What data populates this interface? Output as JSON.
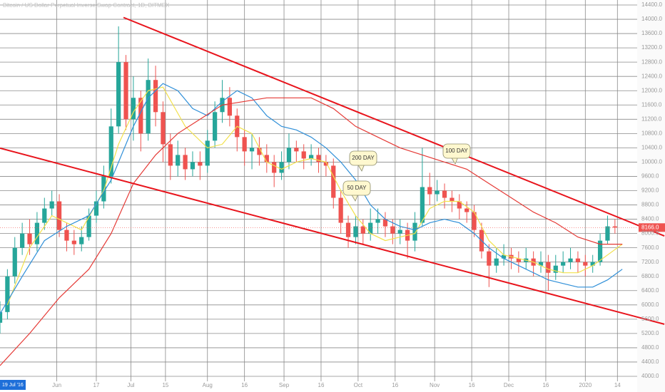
{
  "chart_data": {
    "type": "candlestick",
    "title": "Bitcoin / US Dollar Perpetual Inverse Swap Contract, 1D, BITMEX",
    "cursor_label": "19 Jul '16",
    "up_color": "#26a69a",
    "down_color": "#ef5350",
    "x": [
      0,
      3,
      6,
      9,
      12,
      15,
      18,
      21,
      24,
      27,
      30,
      33,
      36,
      39,
      42,
      45,
      48,
      51,
      54,
      57,
      60,
      63,
      66,
      69,
      72,
      75,
      78,
      81,
      84,
      87,
      90,
      93,
      96,
      99,
      102,
      105,
      108,
      111,
      114,
      117,
      120,
      123,
      126,
      129,
      132,
      135,
      138,
      141,
      144,
      147,
      150,
      153,
      156,
      159,
      162,
      165,
      168,
      171,
      174,
      177,
      180,
      183,
      186,
      189,
      192,
      195,
      198,
      201,
      204,
      207,
      210,
      213,
      216,
      219,
      222,
      225,
      228,
      231,
      234,
      237,
      240,
      243,
      246,
      249
    ],
    "open": [
      5500,
      5800,
      6800,
      7600,
      8000,
      7700,
      8300,
      8700,
      8900,
      8100,
      7800,
      7700,
      7900,
      8500,
      8900,
      9600,
      11000,
      12800,
      11200,
      11800,
      10800,
      12300,
      11400,
      10500,
      9900,
      10200,
      9800,
      10000,
      9900,
      10600,
      11400,
      11800,
      11300,
      10700,
      10300,
      10400,
      10200,
      10000,
      9700,
      10000,
      10400,
      10300,
      10100,
      10200,
      10000,
      9900,
      9000,
      8300,
      7900,
      8200,
      8000,
      8300,
      8400,
      8200,
      8000,
      8100,
      7800,
      8300,
      9300,
      9100,
      9200,
      9000,
      8900,
      8700,
      8600,
      8100,
      7500,
      7100,
      7300,
      7400,
      7300,
      7200,
      7300,
      7100,
      7200,
      6900,
      7100,
      7200,
      7300,
      7200,
      7100,
      7200,
      7800,
      8200
    ],
    "high": [
      6100,
      7000,
      7900,
      8300,
      8400,
      8600,
      9000,
      9200,
      9100,
      8300,
      8100,
      8200,
      8700,
      9200,
      9900,
      11500,
      13800,
      13000,
      12400,
      12000,
      12900,
      12700,
      11700,
      10800,
      10600,
      10400,
      10300,
      10300,
      10900,
      11700,
      12300,
      12100,
      11500,
      10900,
      10800,
      10700,
      10500,
      10200,
      10300,
      10800,
      10600,
      10500,
      10500,
      10400,
      10200,
      10100,
      9200,
      8500,
      8500,
      8400,
      8700,
      8700,
      8600,
      8400,
      8400,
      8300,
      8600,
      10400,
      9700,
      9500,
      9400,
      9200,
      9100,
      8900,
      8800,
      8300,
      7700,
      7600,
      7700,
      7600,
      7500,
      7600,
      7500,
      7500,
      7400,
      7400,
      7500,
      7600,
      7500,
      7400,
      7400,
      8000,
      8500,
      8400
    ],
    "low": [
      5200,
      5600,
      6600,
      7400,
      7400,
      7500,
      8100,
      8500,
      7900,
      7500,
      7400,
      7500,
      7800,
      8300,
      8700,
      9400,
      10800,
      10900,
      10600,
      10300,
      10600,
      11000,
      10000,
      9500,
      9600,
      9500,
      9600,
      9500,
      9700,
      10400,
      11100,
      11000,
      10300,
      9900,
      9800,
      9900,
      9700,
      9300,
      9500,
      9800,
      10000,
      9800,
      9900,
      9700,
      9600,
      8700,
      8000,
      7600,
      7700,
      7700,
      7800,
      8000,
      7900,
      7700,
      7700,
      7300,
      7500,
      8200,
      8800,
      8900,
      8700,
      8600,
      8400,
      8300,
      7900,
      7300,
      6500,
      6900,
      7100,
      7000,
      6900,
      7000,
      6800,
      6900,
      6400,
      6700,
      6900,
      7000,
      6900,
      6800,
      6900,
      7100,
      7700,
      8000
    ],
    "close": [
      5800,
      6800,
      7600,
      8000,
      7700,
      8300,
      8700,
      8900,
      8100,
      7800,
      7700,
      7900,
      8500,
      8900,
      9600,
      11000,
      12800,
      11200,
      11800,
      10800,
      12300,
      11400,
      10500,
      9900,
      10200,
      9800,
      10000,
      9900,
      10600,
      11400,
      11800,
      11300,
      10700,
      10300,
      10400,
      10200,
      10000,
      9700,
      10000,
      10400,
      10300,
      10100,
      10200,
      10000,
      9900,
      9000,
      8300,
      7900,
      8200,
      8000,
      8300,
      8400,
      8200,
      8000,
      8100,
      7800,
      8300,
      9300,
      9100,
      9200,
      9000,
      8900,
      8700,
      8600,
      8100,
      7500,
      7100,
      7300,
      7400,
      7300,
      7200,
      7300,
      7100,
      7200,
      6900,
      7100,
      7200,
      7300,
      7200,
      7100,
      7200,
      7800,
      8200,
      8166
    ],
    "last_price": {
      "value": 8166,
      "label": "8166.0"
    },
    "lines": [
      {
        "color": "#f2e14c",
        "x": [
          3,
          12,
          21,
          30,
          33,
          42,
          48,
          54,
          60,
          66,
          75,
          84,
          90,
          96,
          102,
          108,
          114,
          120,
          126,
          132,
          138,
          144,
          150,
          156,
          162,
          168,
          174,
          180,
          186,
          192,
          198,
          204,
          210,
          216,
          222,
          228,
          234,
          240,
          246,
          252
        ],
        "values": [
          6000,
          7600,
          8500,
          8200,
          8100,
          9200,
          10500,
          11400,
          12000,
          12100,
          11000,
          10400,
          10500,
          11000,
          10800,
          10000,
          9800,
          10000,
          10100,
          10000,
          9200,
          8500,
          8000,
          7800,
          7900,
          8000,
          8700,
          8900,
          8900,
          8600,
          7800,
          7400,
          7300,
          7200,
          7000,
          6900,
          6900,
          7100,
          7400,
          7700
        ]
      },
      {
        "color": "#2f8fd8",
        "x": [
          0,
          9,
          18,
          27,
          36,
          45,
          54,
          60,
          66,
          72,
          78,
          84,
          90,
          96,
          102,
          108,
          114,
          120,
          126,
          132,
          138,
          144,
          150,
          156,
          162,
          168,
          174,
          180,
          186,
          192,
          198,
          204,
          210,
          216,
          222,
          228,
          234,
          240,
          246,
          252
        ],
        "values": [
          5750,
          6800,
          7800,
          8200,
          8500,
          9500,
          11000,
          11800,
          12200,
          12000,
          11500,
          11300,
          11700,
          12000,
          11800,
          11300,
          11000,
          10900,
          10700,
          10400,
          10000,
          9500,
          8800,
          8400,
          8200,
          8100,
          8300,
          8400,
          8300,
          8000,
          7600,
          7300,
          7100,
          6900,
          6700,
          6600,
          6500,
          6500,
          6700,
          7000
        ]
      },
      {
        "color": "#e53935",
        "x": [
          0,
          12,
          24,
          36,
          45,
          54,
          63,
          72,
          81,
          90,
          99,
          108,
          117,
          126,
          135,
          144,
          153,
          162,
          171,
          180,
          189,
          198,
          207,
          216,
          225,
          234,
          243,
          252
        ],
        "values": [
          4300,
          5200,
          6200,
          7000,
          8000,
          9400,
          10200,
          10800,
          11200,
          11600,
          11700,
          11800,
          11800,
          11800,
          11500,
          11000,
          10700,
          10400,
          10200,
          10000,
          9800,
          9400,
          9000,
          8600,
          8300,
          7900,
          7700,
          7700
        ]
      }
    ],
    "trendlines": [
      {
        "color": "#e8141c",
        "x": [
          50,
          269
        ],
        "values": [
          14050,
          7930
        ]
      },
      {
        "color": "#e8141c",
        "x": [
          0,
          269
        ],
        "values": [
          10390,
          5460
        ]
      }
    ],
    "annotations": [
      "200 DAY",
      "50 DAY",
      "100 DAY"
    ],
    "xlim": [
      0,
      258
    ],
    "xticks": [
      {
        "value": 23,
        "label": "Jun"
      },
      {
        "value": 39,
        "label": "17"
      },
      {
        "value": 53,
        "label": "Jul"
      },
      {
        "value": 67,
        "label": "15"
      },
      {
        "value": 84,
        "label": "Aug"
      },
      {
        "value": 99,
        "label": "16"
      },
      {
        "value": 115,
        "label": "Sep"
      },
      {
        "value": 130,
        "label": "16"
      },
      {
        "value": 145,
        "label": "Oct"
      },
      {
        "value": 160,
        "label": "16"
      },
      {
        "value": 176,
        "label": "Nov"
      },
      {
        "value": 191,
        "label": "16"
      },
      {
        "value": 206,
        "label": "Dec"
      },
      {
        "value": 221,
        "label": "16"
      },
      {
        "value": 237,
        "label": "2020"
      },
      {
        "value": 250,
        "label": "14"
      }
    ],
    "ylim": [
      4000,
      14400
    ],
    "yticks": [
      {
        "value": 4000,
        "label": "4000.0"
      },
      {
        "value": 4400,
        "label": "4400.0"
      },
      {
        "value": 4800,
        "label": "4800.0"
      },
      {
        "value": 5200,
        "label": "5200.0"
      },
      {
        "value": 5600,
        "label": "5600.0"
      },
      {
        "value": 6000,
        "label": "6000.0"
      },
      {
        "value": 6400,
        "label": "6400.0"
      },
      {
        "value": 6800,
        "label": "6800.0"
      },
      {
        "value": 7200,
        "label": "7200.0"
      },
      {
        "value": 7600,
        "label": "7600.0"
      },
      {
        "value": 8000,
        "label": "8000.0"
      },
      {
        "value": 8400,
        "label": "8400.0"
      },
      {
        "value": 8800,
        "label": "8800.0"
      },
      {
        "value": 9200,
        "label": "9200.0"
      },
      {
        "value": 9600,
        "label": "9600.0"
      },
      {
        "value": 10000,
        "label": "10000.0"
      },
      {
        "value": 10400,
        "label": "10400.0"
      },
      {
        "value": 10800,
        "label": "10800.0"
      },
      {
        "value": 11200,
        "label": "11200.0"
      },
      {
        "value": 11600,
        "label": "11600.0"
      },
      {
        "value": 12000,
        "label": "12000.0"
      },
      {
        "value": 12400,
        "label": "12400.0"
      },
      {
        "value": 12800,
        "label": "12800.0"
      },
      {
        "value": 13200,
        "label": "13200.0"
      },
      {
        "value": 13600,
        "label": "13600.0"
      },
      {
        "value": 14000,
        "label": "14000.0"
      },
      {
        "value": 14400,
        "label": "14400.0"
      }
    ],
    "grid": true
  }
}
